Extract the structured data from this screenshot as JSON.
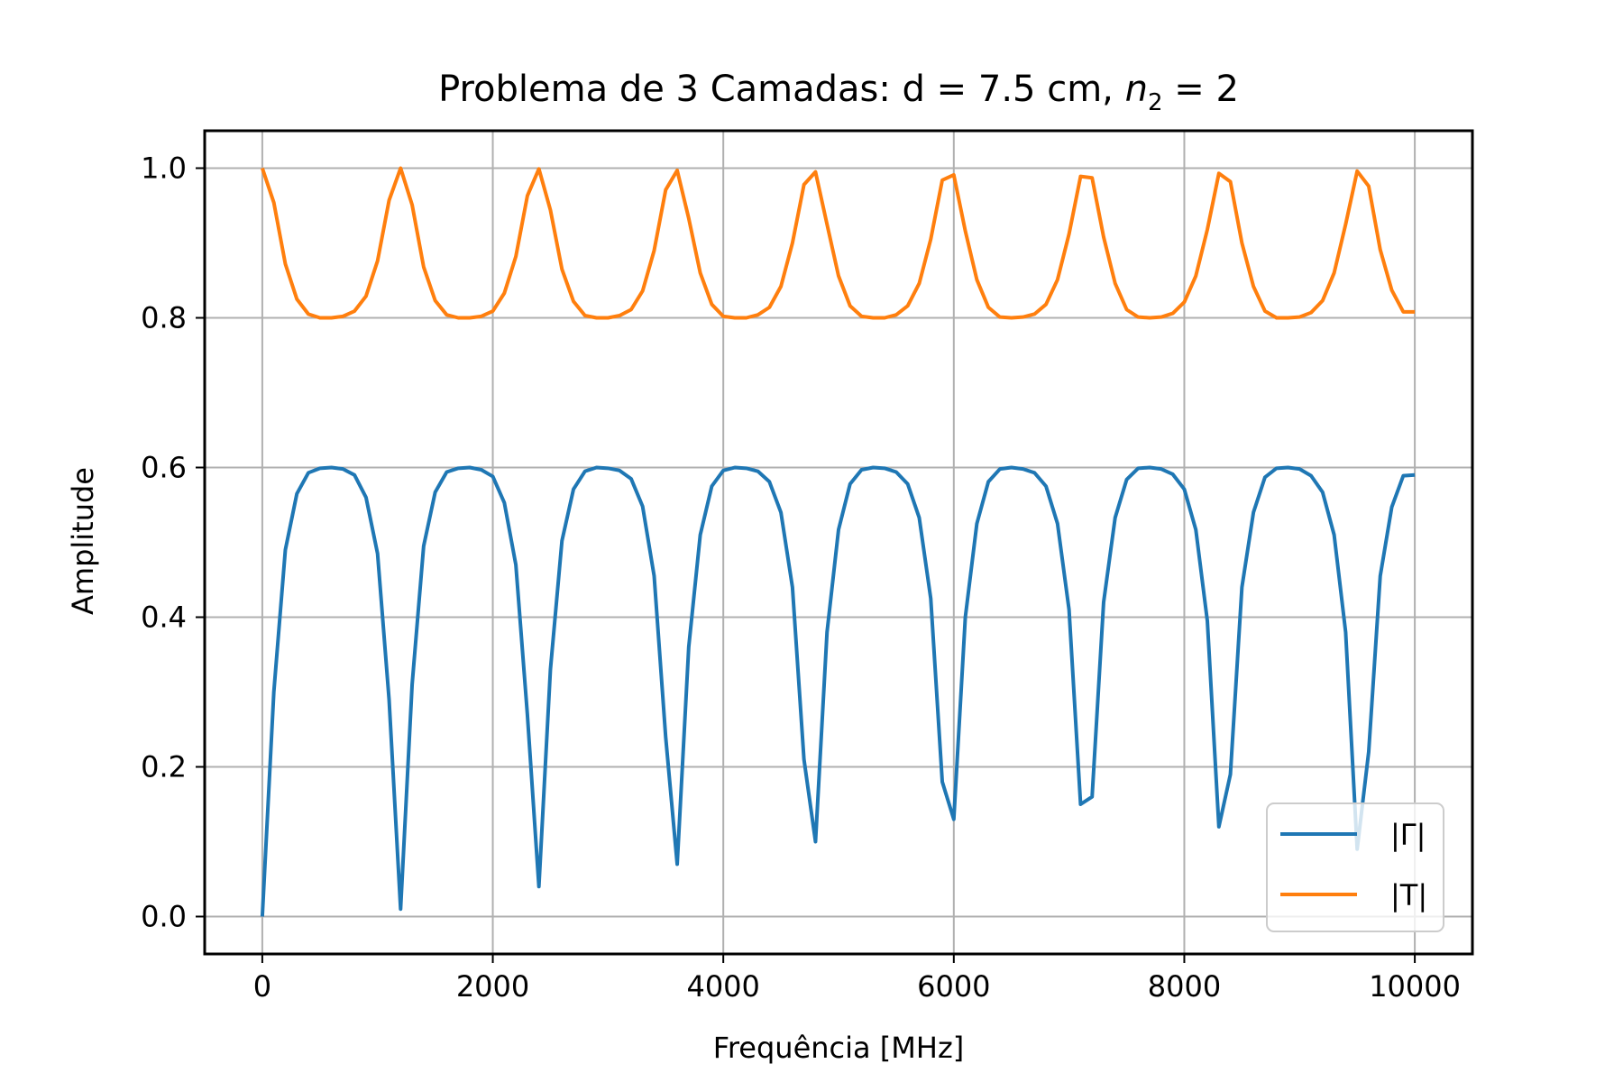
{
  "chart_data": {
    "type": "line",
    "title": "Problema de 3 Camadas: d = 7.5 cm, ",
    "title_math": {
      "variable": "n",
      "subscript": "2",
      "equals": " = 2"
    },
    "xlabel": "Frequência [MHz]",
    "ylabel": "Amplitude",
    "xlim": [
      -500,
      10500
    ],
    "ylim": [
      -0.05,
      1.05
    ],
    "xticks": [
      0,
      2000,
      4000,
      6000,
      8000,
      10000
    ],
    "xtick_labels": [
      "0",
      "2000",
      "4000",
      "6000",
      "8000",
      "10000"
    ],
    "yticks": [
      0.0,
      0.2,
      0.4,
      0.6,
      0.8,
      1.0
    ],
    "ytick_labels": [
      "0.0",
      "0.2",
      "0.4",
      "0.6",
      "0.8",
      "1.0"
    ],
    "grid": true,
    "legend_position": "lower-right",
    "model": "three-layer slab, d = 7.5 cm, n2 = 2",
    "x": [
      0,
      100,
      200,
      300,
      400,
      500,
      600,
      700,
      800,
      900,
      1000,
      1100,
      1200,
      1300,
      1400,
      1500,
      1600,
      1700,
      1800,
      1900,
      2000,
      2100,
      2200,
      2300,
      2400,
      2500,
      2600,
      2700,
      2800,
      2900,
      3000,
      3100,
      3200,
      3300,
      3400,
      3500,
      3600,
      3700,
      3800,
      3900,
      4000,
      4100,
      4200,
      4300,
      4400,
      4500,
      4600,
      4700,
      4800,
      4900,
      5000,
      5100,
      5200,
      5300,
      5400,
      5500,
      5600,
      5700,
      5800,
      5900,
      6000,
      6100,
      6200,
      6300,
      6400,
      6500,
      6600,
      6700,
      6800,
      6900,
      7000,
      7100,
      7200,
      7300,
      7400,
      7500,
      7600,
      7700,
      7800,
      7900,
      8000,
      8100,
      8200,
      8300,
      8400,
      8500,
      8600,
      8700,
      8800,
      8900,
      9000,
      9100,
      9200,
      9300,
      9400,
      9500,
      9600,
      9700,
      9800,
      9900,
      10000
    ],
    "series": [
      {
        "name": "|Γ|",
        "color": "#1f77b4",
        "values": [
          0.0,
          0.3,
          0.49,
          0.565,
          0.593,
          0.599,
          0.6,
          0.598,
          0.59,
          0.56,
          0.485,
          0.29,
          0.01,
          0.31,
          0.495,
          0.567,
          0.594,
          0.599,
          0.6,
          0.597,
          0.588,
          0.553,
          0.47,
          0.27,
          0.04,
          0.33,
          0.502,
          0.571,
          0.595,
          0.6,
          0.599,
          0.596,
          0.585,
          0.548,
          0.455,
          0.24,
          0.07,
          0.36,
          0.51,
          0.575,
          0.596,
          0.6,
          0.599,
          0.595,
          0.581,
          0.54,
          0.44,
          0.21,
          0.1,
          0.38,
          0.517,
          0.578,
          0.597,
          0.6,
          0.599,
          0.594,
          0.578,
          0.533,
          0.425,
          0.18,
          0.13,
          0.4,
          0.525,
          0.581,
          0.598,
          0.6,
          0.598,
          0.593,
          0.575,
          0.525,
          0.41,
          0.15,
          0.16,
          0.42,
          0.533,
          0.584,
          0.599,
          0.6,
          0.598,
          0.591,
          0.571,
          0.517,
          0.395,
          0.12,
          0.19,
          0.44,
          0.54,
          0.587,
          0.599,
          0.6,
          0.598,
          0.589,
          0.567,
          0.51,
          0.38,
          0.09,
          0.22,
          0.455,
          0.547,
          0.589,
          0.59
        ]
      },
      {
        "name": "|T|",
        "color": "#ff7f0e",
        "values": [
          1.0,
          0.954,
          0.872,
          0.825,
          0.805,
          0.8,
          0.8,
          0.802,
          0.809,
          0.829,
          0.876,
          0.957,
          1.0,
          0.951,
          0.868,
          0.823,
          0.804,
          0.8,
          0.8,
          0.802,
          0.809,
          0.833,
          0.882,
          0.963,
          0.999,
          0.944,
          0.865,
          0.822,
          0.803,
          0.8,
          0.8,
          0.803,
          0.811,
          0.836,
          0.89,
          0.971,
          0.997,
          0.933,
          0.86,
          0.818,
          0.802,
          0.8,
          0.8,
          0.804,
          0.814,
          0.842,
          0.9,
          0.978,
          0.995,
          0.925,
          0.856,
          0.816,
          0.802,
          0.8,
          0.8,
          0.804,
          0.816,
          0.846,
          0.905,
          0.984,
          0.991,
          0.916,
          0.851,
          0.814,
          0.801,
          0.8,
          0.801,
          0.805,
          0.818,
          0.851,
          0.912,
          0.989,
          0.987,
          0.908,
          0.846,
          0.811,
          0.801,
          0.8,
          0.801,
          0.806,
          0.821,
          0.856,
          0.918,
          0.993,
          0.982,
          0.9,
          0.842,
          0.809,
          0.8,
          0.8,
          0.801,
          0.807,
          0.823,
          0.86,
          0.925,
          0.996,
          0.976,
          0.891,
          0.837,
          0.808,
          0.808
        ]
      }
    ]
  }
}
